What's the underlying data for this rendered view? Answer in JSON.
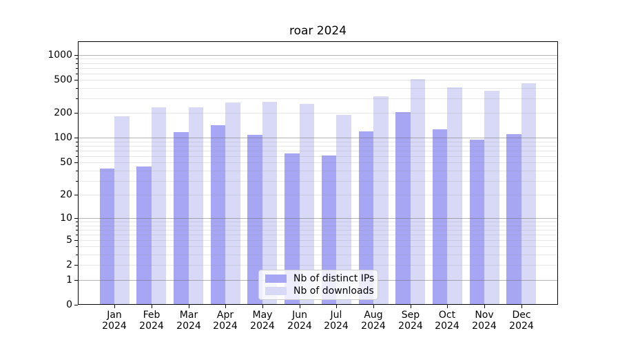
{
  "chart_data": {
    "type": "bar",
    "title": "roar 2024",
    "x_months": [
      "Jan",
      "Feb",
      "Mar",
      "Apr",
      "May",
      "Jun",
      "Jul",
      "Aug",
      "Sep",
      "Oct",
      "Nov",
      "Dec"
    ],
    "x_year": "2024",
    "series": [
      {
        "name": "Nb of distinct IPs",
        "color": "#a6a6f4",
        "values": [
          42,
          45,
          118,
          142,
          109,
          65,
          61,
          120,
          205,
          126,
          96,
          110
        ]
      },
      {
        "name": "Nb of downloads",
        "color": "#d8d8f7",
        "values": [
          183,
          235,
          235,
          270,
          273,
          258,
          191,
          320,
          510,
          405,
          368,
          460
        ]
      }
    ],
    "yscale": "log1p",
    "ylim": [
      0,
      1460
    ],
    "y_tick_values": [
      0,
      1,
      2,
      5,
      10,
      20,
      50,
      100,
      200,
      500,
      1000
    ],
    "y_tick_labels": [
      "0",
      "1",
      "2",
      "5",
      "10",
      "20",
      "50",
      "100",
      "200",
      "500",
      "1000"
    ],
    "grid": {
      "enabled": "both",
      "major_values": [
        1,
        10,
        100,
        1000
      ],
      "minor_multipliers": [
        2,
        3,
        4,
        5,
        6,
        7,
        8,
        9
      ],
      "minor_decades": [
        1,
        10,
        100
      ],
      "minor_tick_multipliers": [
        3,
        4,
        6,
        7,
        8,
        9
      ]
    },
    "legend": {
      "position": "lower center"
    }
  }
}
